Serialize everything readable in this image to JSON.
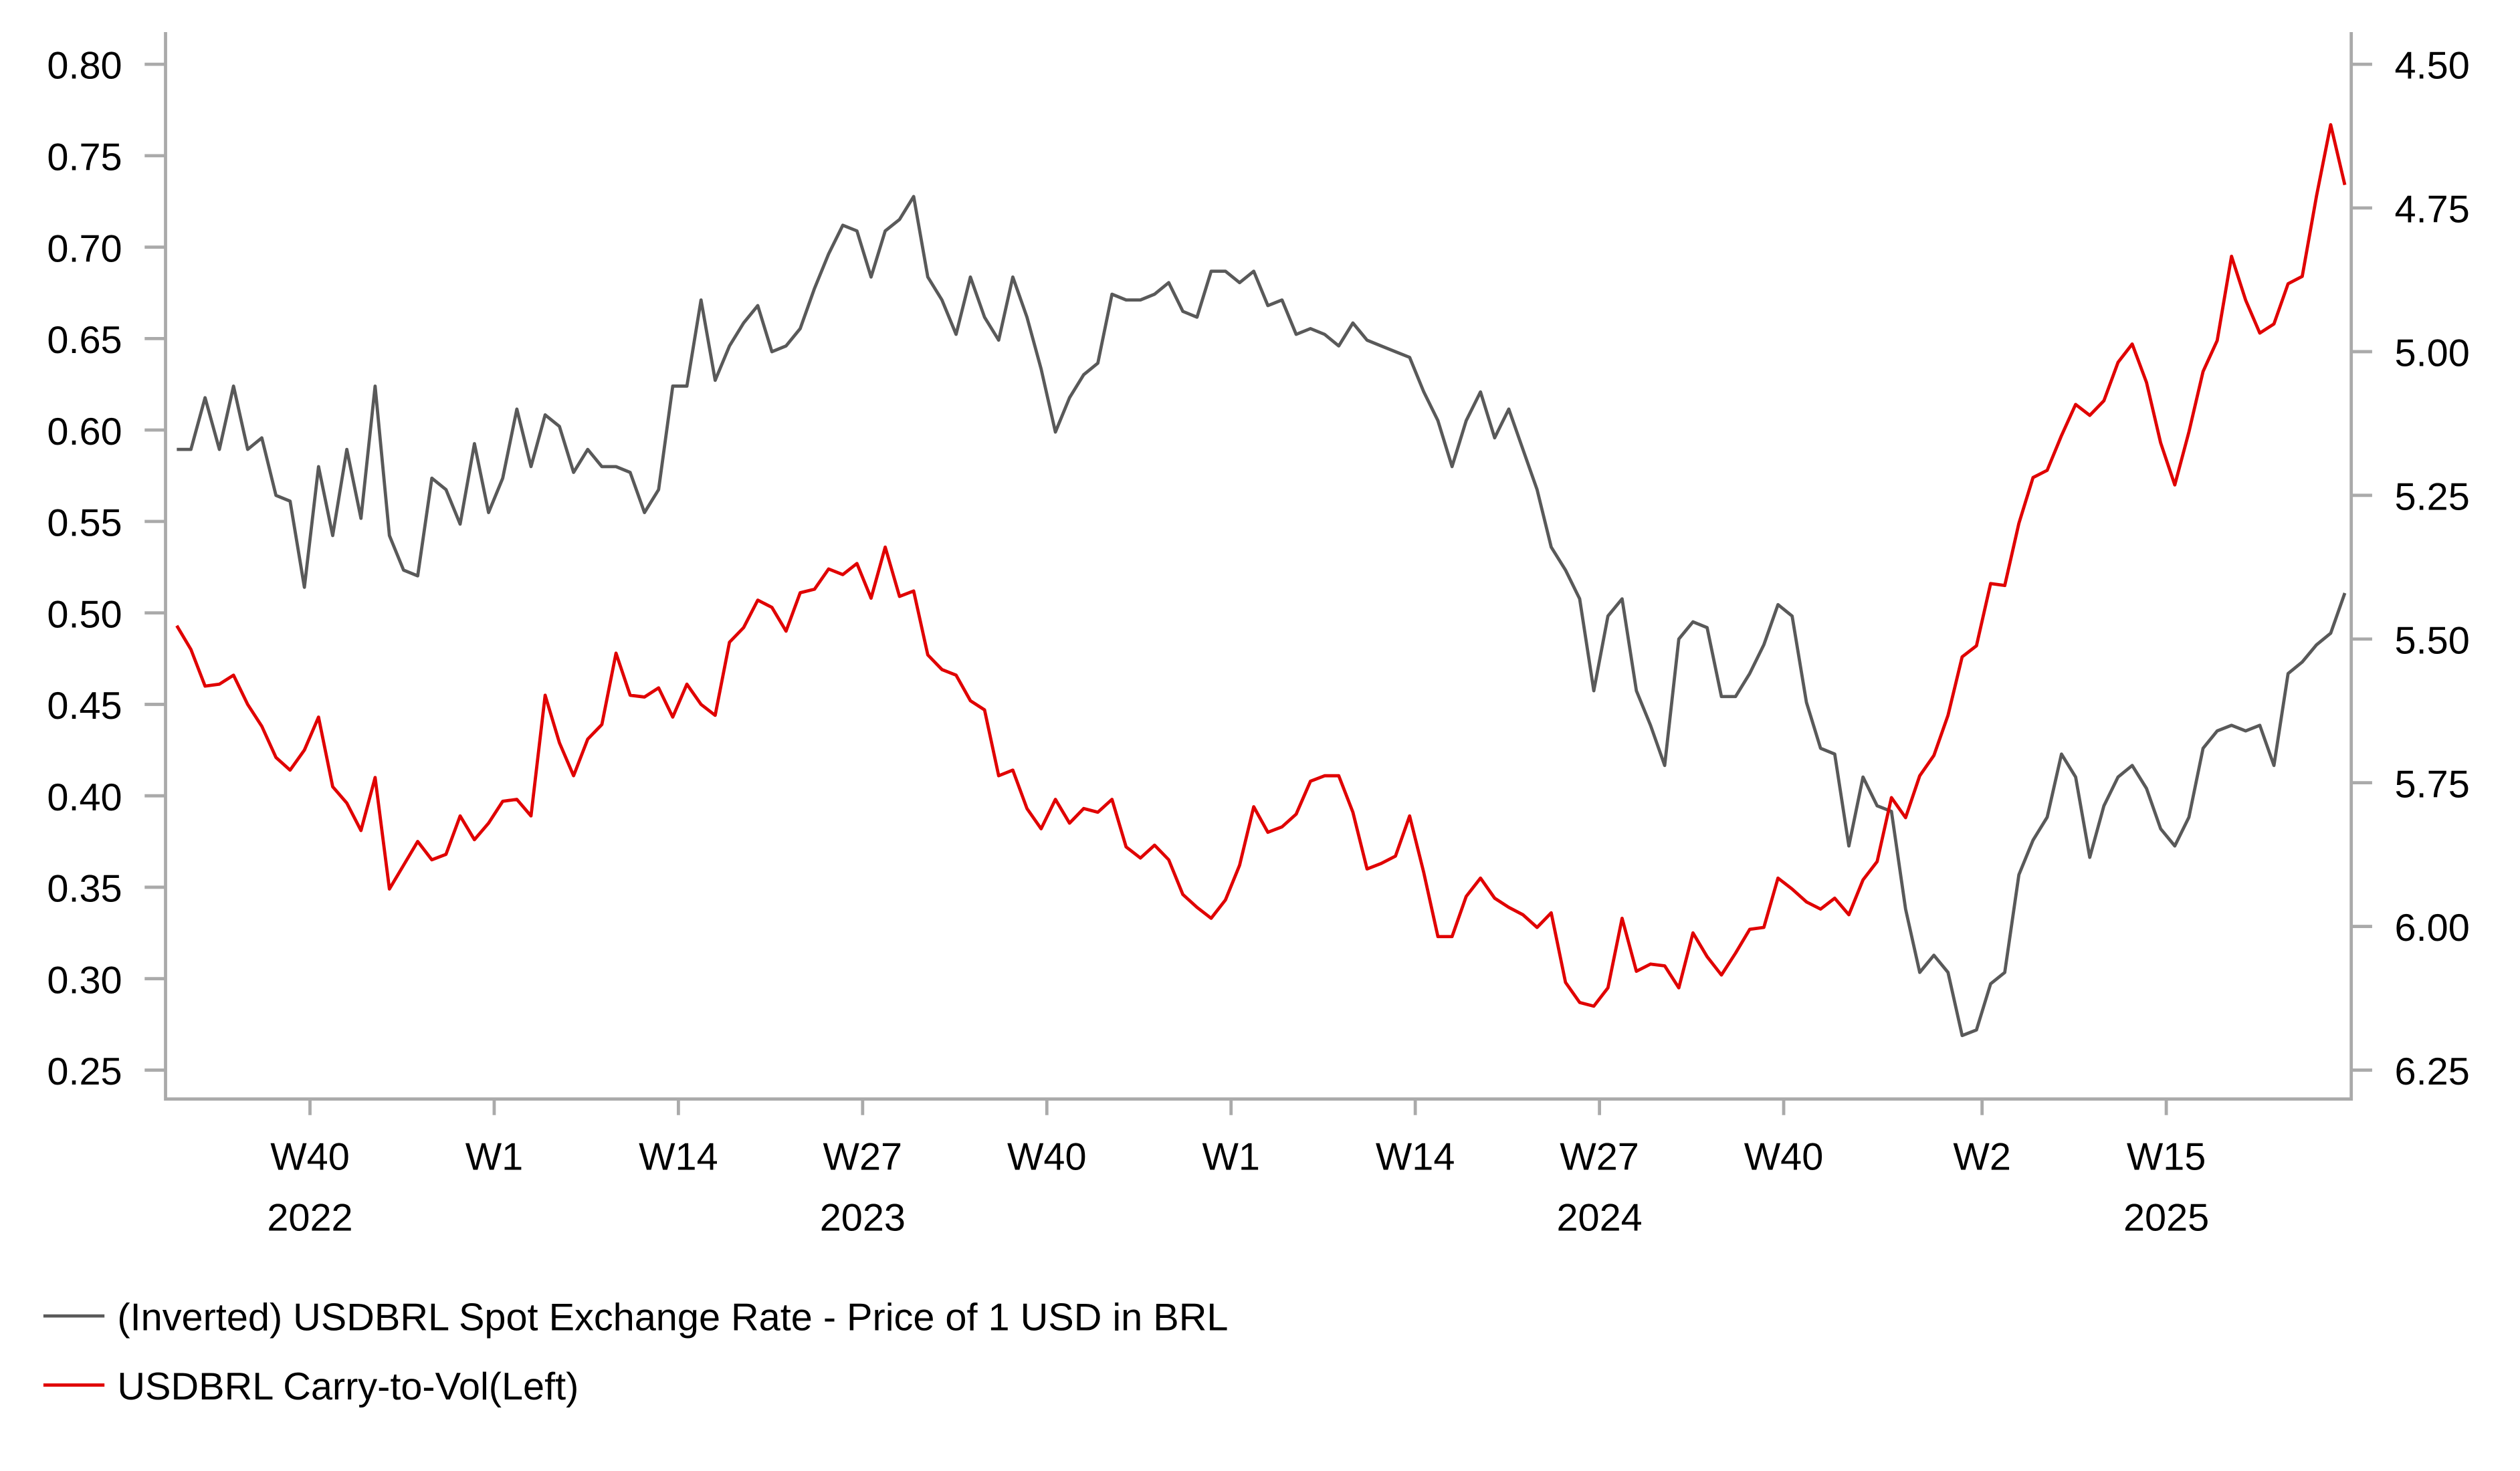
{
  "chart_data": {
    "type": "line",
    "title": "",
    "colors": {
      "spot": "#595959",
      "carry": "#e00000",
      "axis": "#aaaaaa"
    },
    "left_axis": {
      "ylim": [
        0.25,
        0.8
      ],
      "ticks": [
        "0.80",
        "0.75",
        "0.70",
        "0.65",
        "0.60",
        "0.55",
        "0.50",
        "0.45",
        "0.40",
        "0.35",
        "0.30",
        "0.25"
      ]
    },
    "right_axis": {
      "inverted": true,
      "ylim": [
        4.5,
        6.25
      ],
      "ticks": [
        "4.50",
        "4.75",
        "5.00",
        "5.25",
        "5.50",
        "5.75",
        "6.00",
        "6.25"
      ]
    },
    "x_axis": {
      "unit": "weeks since first observation",
      "xlim": [
        0,
        153
      ],
      "ticks": [
        {
          "x": 9.4,
          "label": "W40",
          "year": "2022"
        },
        {
          "x": 22.4,
          "label": "W1",
          "year": ""
        },
        {
          "x": 35.4,
          "label": "W14",
          "year": ""
        },
        {
          "x": 48.4,
          "label": "W27",
          "year": "2023"
        },
        {
          "x": 61.4,
          "label": "W40",
          "year": ""
        },
        {
          "x": 74.4,
          "label": "W1",
          "year": ""
        },
        {
          "x": 87.4,
          "label": "W14",
          "year": ""
        },
        {
          "x": 100.4,
          "label": "W27",
          "year": "2024"
        },
        {
          "x": 113.4,
          "label": "W40",
          "year": ""
        },
        {
          "x": 127.4,
          "label": "W2",
          "year": ""
        },
        {
          "x": 140.4,
          "label": "W15",
          "year": "2025"
        }
      ]
    },
    "series": [
      {
        "name": "(Inverted) USDBRL Spot Exchange Rate - Price of 1 USD in BRL",
        "axis": "right",
        "values": [
          5.17,
          5.17,
          5.08,
          5.17,
          5.06,
          5.17,
          5.15,
          5.25,
          5.26,
          5.41,
          5.2,
          5.32,
          5.17,
          5.29,
          5.06,
          5.32,
          5.38,
          5.39,
          5.22,
          5.24,
          5.3,
          5.16,
          5.28,
          5.22,
          5.1,
          5.2,
          5.11,
          5.13,
          5.21,
          5.17,
          5.2,
          5.2,
          5.21,
          5.28,
          5.24,
          5.06,
          5.06,
          4.91,
          5.05,
          4.99,
          4.95,
          4.92,
          5.0,
          4.99,
          4.96,
          4.89,
          4.83,
          4.78,
          4.79,
          4.87,
          4.79,
          4.77,
          4.73,
          4.87,
          4.91,
          4.97,
          4.87,
          4.94,
          4.98,
          4.87,
          4.94,
          5.03,
          5.14,
          5.08,
          5.04,
          5.02,
          4.9,
          4.91,
          4.91,
          4.9,
          4.88,
          4.93,
          4.94,
          4.86,
          4.86,
          4.88,
          4.86,
          4.92,
          4.91,
          4.97,
          4.96,
          4.97,
          4.99,
          4.95,
          4.98,
          4.99,
          5.0,
          5.01,
          5.07,
          5.12,
          5.2,
          5.12,
          5.07,
          5.15,
          5.1,
          5.17,
          5.24,
          5.34,
          5.38,
          5.43,
          5.59,
          5.46,
          5.43,
          5.59,
          5.65,
          5.72,
          5.5,
          5.47,
          5.48,
          5.6,
          5.6,
          5.56,
          5.51,
          5.44,
          5.46,
          5.61,
          5.69,
          5.7,
          5.86,
          5.74,
          5.79,
          5.8,
          5.97,
          6.08,
          6.05,
          6.08,
          6.19,
          6.18,
          6.1,
          6.08,
          5.91,
          5.85,
          5.81,
          5.7,
          5.74,
          5.88,
          5.79,
          5.74,
          5.72,
          5.76,
          5.83,
          5.86,
          5.81,
          5.69,
          5.66,
          5.65,
          5.66,
          5.65,
          5.72,
          5.56,
          5.54,
          5.51,
          5.49,
          5.42
        ]
      },
      {
        "name": "USDBRL Carry-to-Vol(Left)",
        "axis": "left",
        "values": [
          0.493,
          0.48,
          0.46,
          0.461,
          0.466,
          0.45,
          0.438,
          0.421,
          0.414,
          0.425,
          0.443,
          0.405,
          0.396,
          0.381,
          0.41,
          0.349,
          0.362,
          0.375,
          0.365,
          0.368,
          0.389,
          0.376,
          0.385,
          0.397,
          0.398,
          0.389,
          0.455,
          0.429,
          0.411,
          0.431,
          0.439,
          0.478,
          0.455,
          0.454,
          0.459,
          0.443,
          0.461,
          0.45,
          0.444,
          0.484,
          0.492,
          0.507,
          0.503,
          0.49,
          0.511,
          0.513,
          0.524,
          0.521,
          0.527,
          0.508,
          0.536,
          0.509,
          0.512,
          0.477,
          0.469,
          0.466,
          0.452,
          0.447,
          0.411,
          0.414,
          0.393,
          0.382,
          0.398,
          0.385,
          0.393,
          0.391,
          0.398,
          0.372,
          0.366,
          0.373,
          0.365,
          0.346,
          0.339,
          0.333,
          0.343,
          0.362,
          0.394,
          0.38,
          0.383,
          0.39,
          0.408,
          0.411,
          0.411,
          0.391,
          0.36,
          0.363,
          0.367,
          0.389,
          0.358,
          0.323,
          0.323,
          0.345,
          0.355,
          0.344,
          0.339,
          0.335,
          0.328,
          0.336,
          0.298,
          0.287,
          0.285,
          0.295,
          0.333,
          0.304,
          0.308,
          0.307,
          0.295,
          0.325,
          0.312,
          0.302,
          0.314,
          0.327,
          0.328,
          0.355,
          0.349,
          0.342,
          0.338,
          0.344,
          0.335,
          0.354,
          0.364,
          0.399,
          0.388,
          0.411,
          0.422,
          0.444,
          0.476,
          0.482,
          0.516,
          0.515,
          0.549,
          0.574,
          0.578,
          0.597,
          0.614,
          0.608,
          0.616,
          0.637,
          0.647,
          0.626,
          0.593,
          0.57,
          0.599,
          0.632,
          0.649,
          0.695,
          0.671,
          0.653,
          0.658,
          0.68,
          0.684,
          0.728,
          0.767,
          0.734
        ]
      }
    ],
    "legend": {
      "placement": "bottom-left",
      "entries": [
        "(Inverted) USDBRL Spot Exchange Rate - Price of 1 USD in BRL",
        "USDBRL Carry-to-Vol(Left)"
      ]
    },
    "grid": false
  }
}
